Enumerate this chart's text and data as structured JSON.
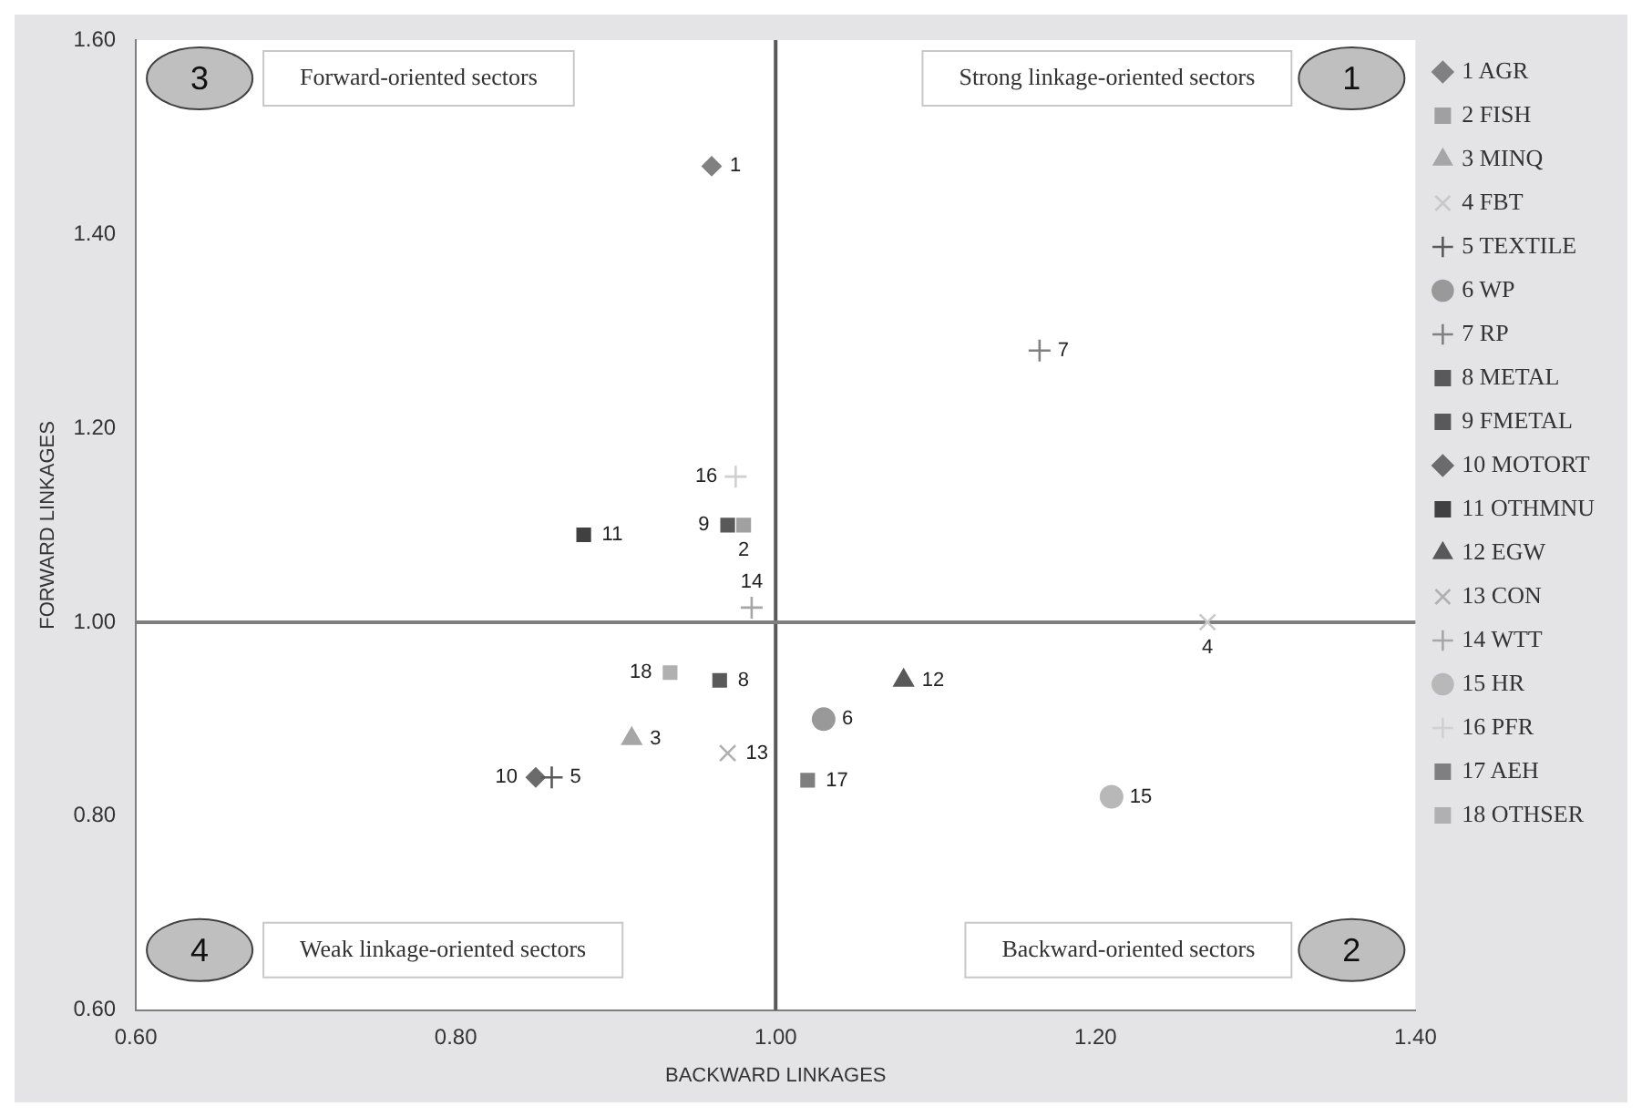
{
  "chart_data": {
    "type": "scatter",
    "xlabel": "BACKWARD LINKAGES",
    "ylabel": "FORWARD LINKAGES",
    "xlim": [
      0.6,
      1.4
    ],
    "xticks": [
      {
        "value": 0.6,
        "label": "0.60"
      },
      {
        "value": 0.8,
        "label": "0.80"
      },
      {
        "value": 1.0,
        "label": "1.00"
      },
      {
        "value": 1.2,
        "label": "1.20"
      },
      {
        "value": 1.4,
        "label": "1.40"
      }
    ],
    "ylim": [
      0.6,
      1.6
    ],
    "yticks": [
      {
        "value": 0.6,
        "label": "0.60"
      },
      {
        "value": 0.8,
        "label": "0.80"
      },
      {
        "value": 1.0,
        "label": "1.00"
      },
      {
        "value": 1.2,
        "label": "1.20"
      },
      {
        "value": 1.4,
        "label": "1.40"
      },
      {
        "value": 1.6,
        "label": "1.60"
      }
    ],
    "grid": false,
    "legend": "right",
    "ref_lines": [
      {
        "axis": "x",
        "value": 1.0,
        "color": "#595959"
      },
      {
        "axis": "y",
        "value": 1.0,
        "color": "#7f7f7f"
      }
    ],
    "series": [
      {
        "name": "1 AGR",
        "color": "#808080",
        "marker": "diamond",
        "x": [
          0.96
        ],
        "values": [
          1.47
        ]
      },
      {
        "name": "2 FISH",
        "color": "#a0a0a0",
        "marker": "square",
        "x": [
          0.98
        ],
        "values": [
          1.1
        ]
      },
      {
        "name": "3 MINQ",
        "color": "#a6a6a6",
        "marker": "triangle",
        "x": [
          0.91
        ],
        "values": [
          0.88
        ]
      },
      {
        "name": "4 FBT",
        "color": "#c8c8c8",
        "marker": "x",
        "x": [
          1.27
        ],
        "values": [
          1.0
        ]
      },
      {
        "name": "5 TEXTILE",
        "color": "#595959",
        "marker": "cross",
        "x": [
          0.86
        ],
        "values": [
          0.84
        ]
      },
      {
        "name": "6 WP",
        "color": "#999999",
        "marker": "circle",
        "x": [
          1.03
        ],
        "values": [
          0.9
        ]
      },
      {
        "name": "7 RP",
        "color": "#808080",
        "marker": "cross",
        "x": [
          1.165
        ],
        "values": [
          1.28
        ]
      },
      {
        "name": "8 METAL",
        "color": "#595959",
        "marker": "square",
        "x": [
          0.965
        ],
        "values": [
          0.94
        ]
      },
      {
        "name": "9 FMETAL",
        "color": "#595959",
        "marker": "square",
        "x": [
          0.97
        ],
        "values": [
          1.1
        ]
      },
      {
        "name": "10 MOTORT",
        "color": "#6b6b6b",
        "marker": "diamond",
        "x": [
          0.85
        ],
        "values": [
          0.84
        ]
      },
      {
        "name": "11 OTHMNU",
        "color": "#404040",
        "marker": "square",
        "x": [
          0.88
        ],
        "values": [
          1.09
        ]
      },
      {
        "name": "12 EGW",
        "color": "#595959",
        "marker": "triangle",
        "x": [
          1.08
        ],
        "values": [
          0.94
        ]
      },
      {
        "name": "13 CON",
        "color": "#b0b0b0",
        "marker": "x",
        "x": [
          0.97
        ],
        "values": [
          0.865
        ]
      },
      {
        "name": "14 WTT",
        "color": "#a6a6a6",
        "marker": "cross",
        "x": [
          0.985
        ],
        "values": [
          1.015
        ]
      },
      {
        "name": "15 HR",
        "color": "#b8b8b8",
        "marker": "circle",
        "x": [
          1.21
        ],
        "values": [
          0.82
        ]
      },
      {
        "name": "16 PFR",
        "color": "#d0d0d0",
        "marker": "cross",
        "x": [
          0.975
        ],
        "values": [
          1.15
        ]
      },
      {
        "name": "17 AEH",
        "color": "#7f7f7f",
        "marker": "square",
        "x": [
          1.02
        ],
        "values": [
          0.837
        ]
      },
      {
        "name": "18 OTHSER",
        "color": "#b0b0b0",
        "marker": "square",
        "x": [
          0.934
        ],
        "values": [
          0.948
        ]
      }
    ],
    "annotations": [
      "Forward-oriented sectors",
      "Strong linkage-oriented sectors",
      "Weak linkage-oriented sectors",
      "Backward-oriented sectors",
      "3",
      "1",
      "4",
      "2",
      {
        "text": "1",
        "x": 0.96,
        "y": 1.47
      },
      {
        "text": "2",
        "x": 0.98,
        "y": 1.1
      },
      {
        "text": "3",
        "x": 0.91,
        "y": 0.88
      },
      {
        "text": "4",
        "x": 1.27,
        "y": 1.0
      },
      {
        "text": "5",
        "x": 0.86,
        "y": 0.84
      },
      {
        "text": "6",
        "x": 1.03,
        "y": 0.9
      },
      {
        "text": "7",
        "x": 1.165,
        "y": 1.28
      },
      {
        "text": "8",
        "x": 0.965,
        "y": 0.94
      },
      {
        "text": "9",
        "x": 0.97,
        "y": 1.1
      },
      {
        "text": "10",
        "x": 0.85,
        "y": 0.84
      },
      {
        "text": "11",
        "x": 0.88,
        "y": 1.09
      },
      {
        "text": "12",
        "x": 1.08,
        "y": 0.94
      },
      {
        "text": "13",
        "x": 0.97,
        "y": 0.865
      },
      {
        "text": "14",
        "x": 0.985,
        "y": 1.015
      },
      {
        "text": "15",
        "x": 1.21,
        "y": 0.82
      },
      {
        "text": "16",
        "x": 0.975,
        "y": 1.15
      },
      {
        "text": "17",
        "x": 1.02,
        "y": 0.837
      },
      {
        "text": "18",
        "x": 0.934,
        "y": 0.948
      }
    ]
  }
}
